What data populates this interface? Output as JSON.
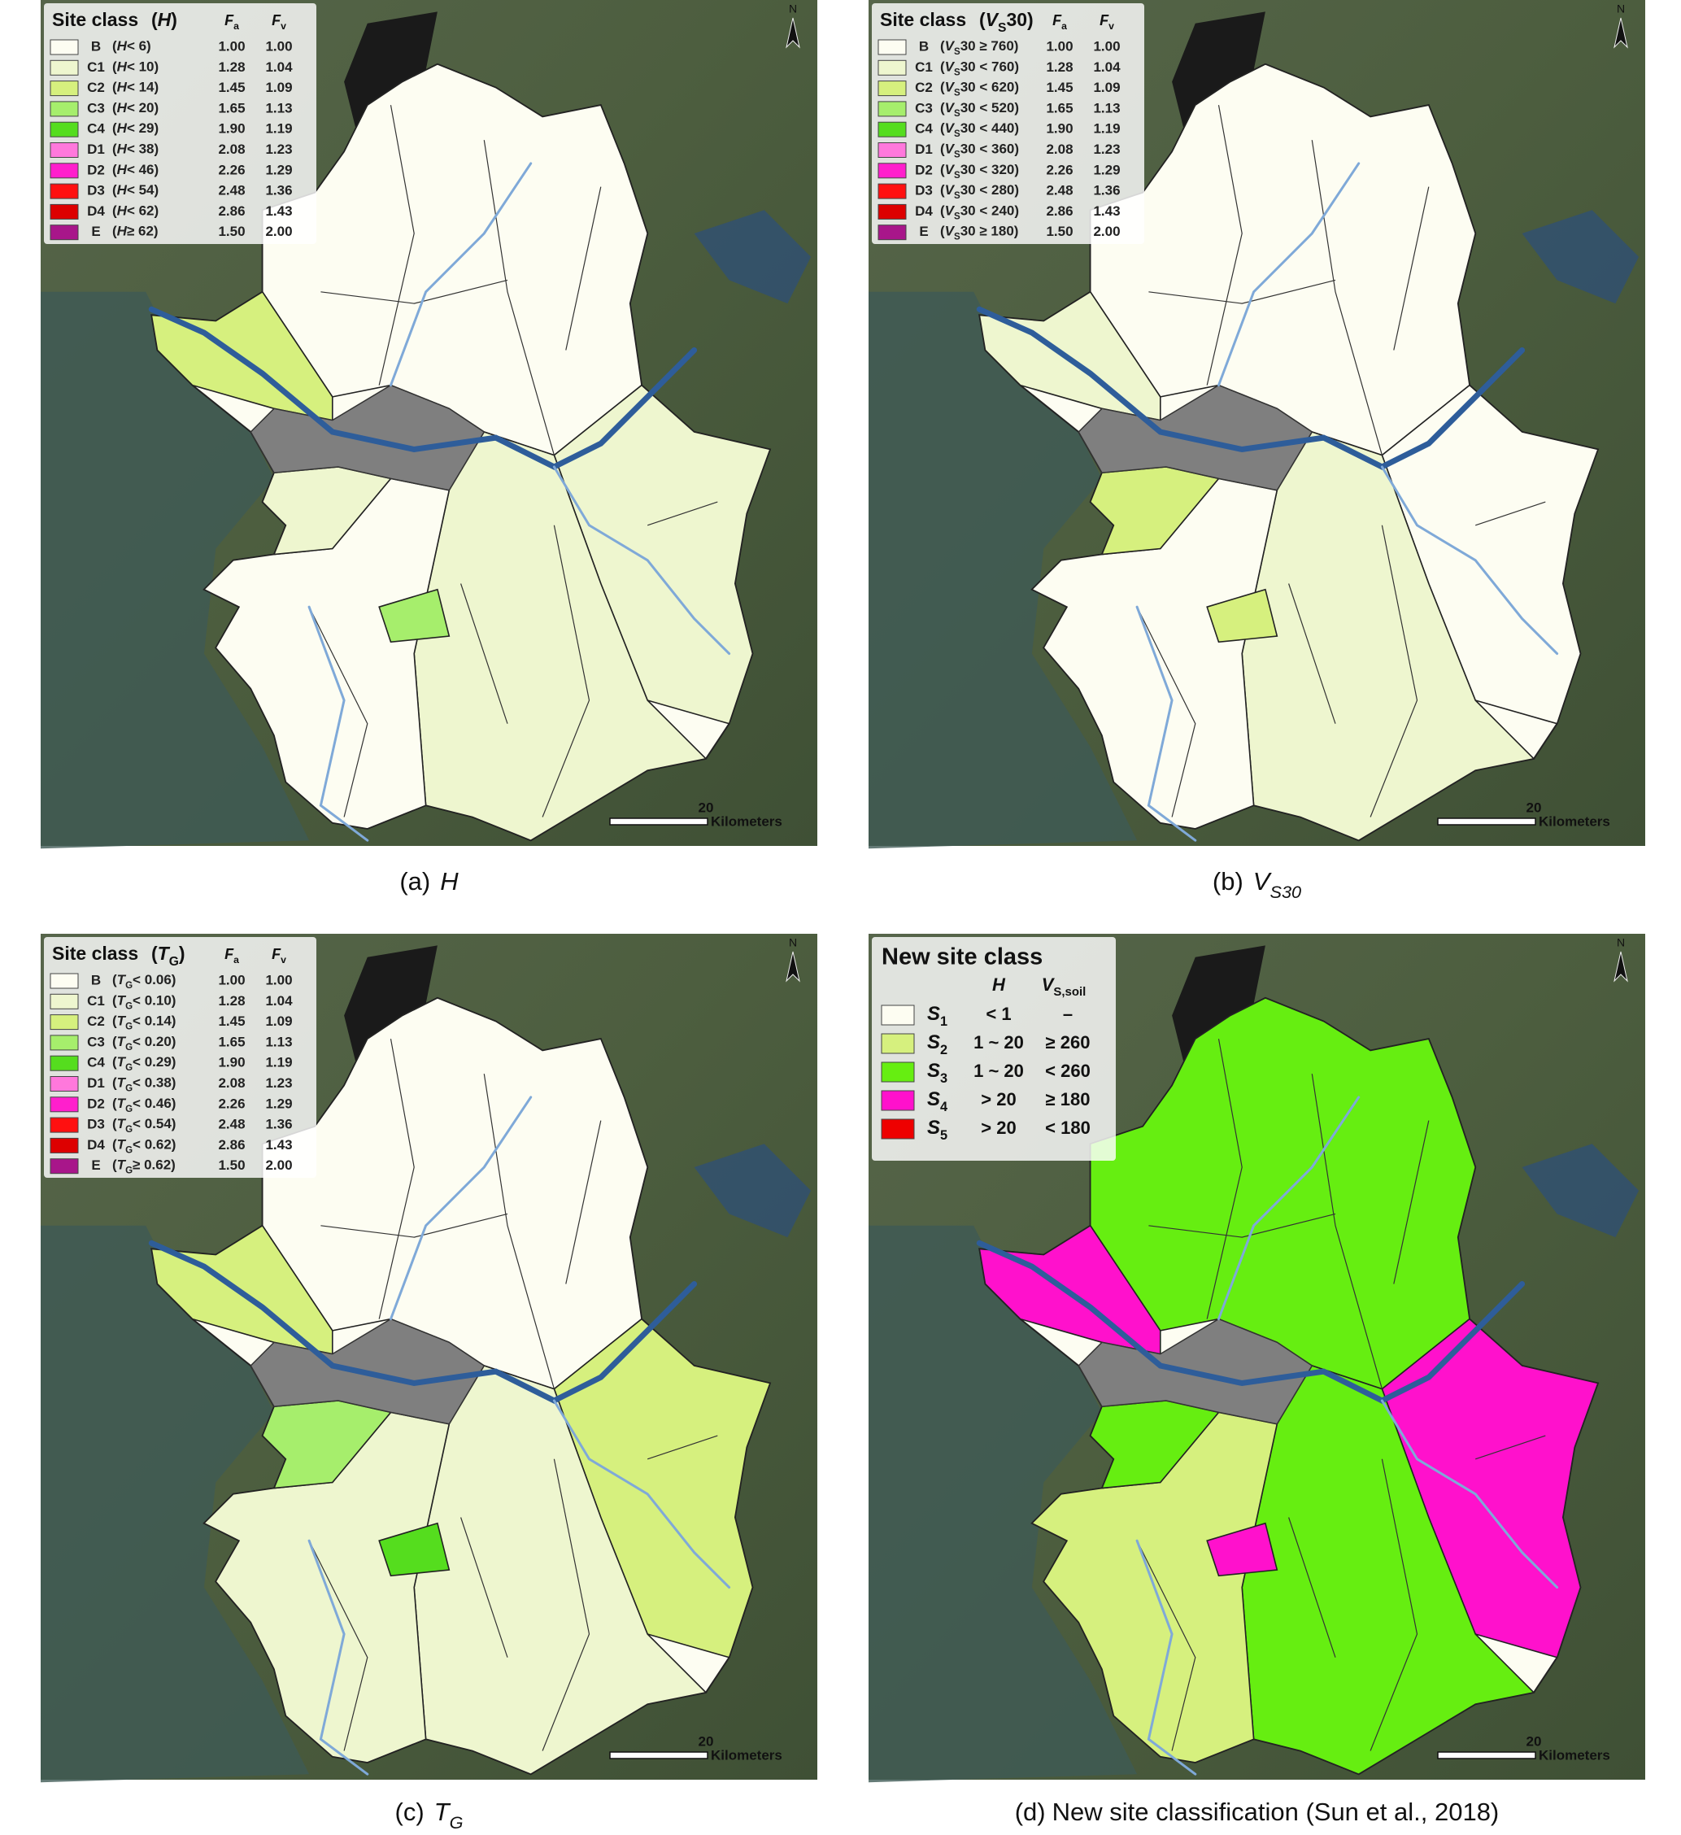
{
  "panels": [
    {
      "kind": "coefficients",
      "legend": {
        "title": "Site class",
        "symbol": {
          "open": "(",
          "main": "H",
          "rest": ")"
        },
        "headers": [
          {
            "main": "F",
            "sub": "a"
          },
          {
            "main": "F",
            "sub": "v"
          }
        ],
        "rows": [
          {
            "code": "B",
            "color": "#fdfdf2",
            "condition": {
              "open": "(",
              "main": "H",
              "rest": "< 6)"
            },
            "fa": "1.00",
            "fv": "1.00"
          },
          {
            "code": "C1",
            "color": "#eef6cf",
            "condition": {
              "open": "(",
              "main": "H",
              "rest": "< 10)"
            },
            "fa": "1.28",
            "fv": "1.04"
          },
          {
            "code": "C2",
            "color": "#d6f07e",
            "condition": {
              "open": "(",
              "main": "H",
              "rest": "< 14)"
            },
            "fa": "1.45",
            "fv": "1.09"
          },
          {
            "code": "C3",
            "color": "#a6ee6c",
            "condition": {
              "open": "(",
              "main": "H",
              "rest": "< 20)"
            },
            "fa": "1.65",
            "fv": "1.13"
          },
          {
            "code": "C4",
            "color": "#55dd1e",
            "condition": {
              "open": "(",
              "main": "H",
              "rest": "< 29)"
            },
            "fa": "1.90",
            "fv": "1.19"
          },
          {
            "code": "D1",
            "color": "#ff78dc",
            "condition": {
              "open": "(",
              "main": "H",
              "rest": "< 38)"
            },
            "fa": "2.08",
            "fv": "1.23"
          },
          {
            "code": "D2",
            "color": "#ff1fcc",
            "condition": {
              "open": "(",
              "main": "H",
              "rest": "< 46)"
            },
            "fa": "2.26",
            "fv": "1.29"
          },
          {
            "code": "D3",
            "color": "#ff1010",
            "condition": {
              "open": "(",
              "main": "H",
              "rest": "< 54)"
            },
            "fa": "2.48",
            "fv": "1.36"
          },
          {
            "code": "D4",
            "color": "#dd0000",
            "condition": {
              "open": "(",
              "main": "H",
              "rest": "< 62)"
            },
            "fa": "2.86",
            "fv": "1.43"
          },
          {
            "code": "E",
            "color": "#a8168a",
            "condition": {
              "open": "(",
              "main": "H",
              "rest": "≥ 62)"
            },
            "fa": "1.50",
            "fv": "2.00"
          }
        ]
      },
      "north": "N",
      "scale": {
        "distance": "20",
        "unit": "Kilometers"
      },
      "caption": {
        "label": "(a)",
        "main": "H"
      }
    },
    {
      "kind": "coefficients",
      "legend": {
        "title": "Site class",
        "symbol": {
          "open": "(",
          "main": "V",
          "sub": "S",
          "rest": "30)"
        },
        "headers": [
          {
            "main": "F",
            "sub": "a"
          },
          {
            "main": "F",
            "sub": "v"
          }
        ],
        "rows": [
          {
            "code": "B",
            "color": "#fdfdf2",
            "condition": {
              "open": "(",
              "main": "V",
              "sub": "S",
              "rest": "30 ≥ 760)"
            },
            "fa": "1.00",
            "fv": "1.00"
          },
          {
            "code": "C1",
            "color": "#eef6cf",
            "condition": {
              "open": "(",
              "main": "V",
              "sub": "S",
              "rest": "30 < 760)"
            },
            "fa": "1.28",
            "fv": "1.04"
          },
          {
            "code": "C2",
            "color": "#d6f07e",
            "condition": {
              "open": "(",
              "main": "V",
              "sub": "S",
              "rest": "30 < 620)"
            },
            "fa": "1.45",
            "fv": "1.09"
          },
          {
            "code": "C3",
            "color": "#a6ee6c",
            "condition": {
              "open": "(",
              "main": "V",
              "sub": "S",
              "rest": "30 < 520)"
            },
            "fa": "1.65",
            "fv": "1.13"
          },
          {
            "code": "C4",
            "color": "#55dd1e",
            "condition": {
              "open": "(",
              "main": "V",
              "sub": "S",
              "rest": "30 < 440)"
            },
            "fa": "1.90",
            "fv": "1.19"
          },
          {
            "code": "D1",
            "color": "#ff78dc",
            "condition": {
              "open": "(",
              "main": "V",
              "sub": "S",
              "rest": "30 < 360)"
            },
            "fa": "2.08",
            "fv": "1.23"
          },
          {
            "code": "D2",
            "color": "#ff1fcc",
            "condition": {
              "open": "(",
              "main": "V",
              "sub": "S",
              "rest": "30 < 320)"
            },
            "fa": "2.26",
            "fv": "1.29"
          },
          {
            "code": "D3",
            "color": "#ff1010",
            "condition": {
              "open": "(",
              "main": "V",
              "sub": "S",
              "rest": "30 < 280)"
            },
            "fa": "2.48",
            "fv": "1.36"
          },
          {
            "code": "D4",
            "color": "#dd0000",
            "condition": {
              "open": "(",
              "main": "V",
              "sub": "S",
              "rest": "30 < 240)"
            },
            "fa": "2.86",
            "fv": "1.43"
          },
          {
            "code": "E",
            "color": "#a8168a",
            "condition": {
              "open": "(",
              "main": "V",
              "sub": "S",
              "rest": "30 ≥ 180)"
            },
            "fa": "1.50",
            "fv": "2.00"
          }
        ]
      },
      "north": "N",
      "scale": {
        "distance": "20",
        "unit": "Kilometers"
      },
      "caption": {
        "label": "(b)",
        "main": "V",
        "sub": "S30"
      }
    },
    {
      "kind": "coefficients",
      "legend": {
        "title": "Site class",
        "symbol": {
          "open": "(",
          "main": "T",
          "sub": "G",
          "rest": ")"
        },
        "headers": [
          {
            "main": "F",
            "sub": "a"
          },
          {
            "main": "F",
            "sub": "v"
          }
        ],
        "rows": [
          {
            "code": "B",
            "color": "#fdfdf2",
            "condition": {
              "open": "(",
              "main": "T",
              "sub": "G",
              "rest": "< 0.06)"
            },
            "fa": "1.00",
            "fv": "1.00"
          },
          {
            "code": "C1",
            "color": "#eef6cf",
            "condition": {
              "open": "(",
              "main": "T",
              "sub": "G",
              "rest": "< 0.10)"
            },
            "fa": "1.28",
            "fv": "1.04"
          },
          {
            "code": "C2",
            "color": "#d6f07e",
            "condition": {
              "open": "(",
              "main": "T",
              "sub": "G",
              "rest": "< 0.14)"
            },
            "fa": "1.45",
            "fv": "1.09"
          },
          {
            "code": "C3",
            "color": "#a6ee6c",
            "condition": {
              "open": "(",
              "main": "T",
              "sub": "G",
              "rest": "< 0.20)"
            },
            "fa": "1.65",
            "fv": "1.13"
          },
          {
            "code": "C4",
            "color": "#55dd1e",
            "condition": {
              "open": "(",
              "main": "T",
              "sub": "G",
              "rest": "< 0.29)"
            },
            "fa": "1.90",
            "fv": "1.19"
          },
          {
            "code": "D1",
            "color": "#ff78dc",
            "condition": {
              "open": "(",
              "main": "T",
              "sub": "G",
              "rest": "< 0.38)"
            },
            "fa": "2.08",
            "fv": "1.23"
          },
          {
            "code": "D2",
            "color": "#ff1fcc",
            "condition": {
              "open": "(",
              "main": "T",
              "sub": "G",
              "rest": "< 0.46)"
            },
            "fa": "2.26",
            "fv": "1.29"
          },
          {
            "code": "D3",
            "color": "#ff1010",
            "condition": {
              "open": "(",
              "main": "T",
              "sub": "G",
              "rest": "< 0.54)"
            },
            "fa": "2.48",
            "fv": "1.36"
          },
          {
            "code": "D4",
            "color": "#dd0000",
            "condition": {
              "open": "(",
              "main": "T",
              "sub": "G",
              "rest": "< 0.62)"
            },
            "fa": "2.86",
            "fv": "1.43"
          },
          {
            "code": "E",
            "color": "#a8168a",
            "condition": {
              "open": "(",
              "main": "T",
              "sub": "G",
              "rest": "≥ 0.62)"
            },
            "fa": "1.50",
            "fv": "2.00"
          }
        ]
      },
      "north": "N",
      "scale": {
        "distance": "20",
        "unit": "Kilometers"
      },
      "caption": {
        "label": "(c)",
        "main": "T",
        "sub": "G"
      }
    },
    {
      "kind": "classes",
      "legend": {
        "title": "New site class",
        "headers": [
          {
            "main": "H"
          },
          {
            "main": "V",
            "sub": "S,soil"
          }
        ],
        "rows": [
          {
            "code": {
              "main": "S",
              "sub": "1"
            },
            "color": "#fdfdf2",
            "h": "< 1",
            "v": "–"
          },
          {
            "code": {
              "main": "S",
              "sub": "2"
            },
            "color": "#d6f07e",
            "h": "1 ~ 20",
            "v": "≥ 260"
          },
          {
            "code": {
              "main": "S",
              "sub": "3"
            },
            "color": "#66ee11",
            "h": "1 ~ 20",
            "v": "< 260"
          },
          {
            "code": {
              "main": "S",
              "sub": "4"
            },
            "color": "#ff11cc",
            "h": "> 20",
            "v": "≥ 180"
          },
          {
            "code": {
              "main": "S",
              "sub": "5"
            },
            "color": "#ee0000",
            "h": "> 20",
            "v": "< 180"
          }
        ]
      },
      "north": "N",
      "scale": {
        "distance": "20",
        "unit": "Kilometers"
      },
      "caption": {
        "label": "(d)",
        "rest": "New site classification (Sun et al., 2018)"
      }
    }
  ]
}
